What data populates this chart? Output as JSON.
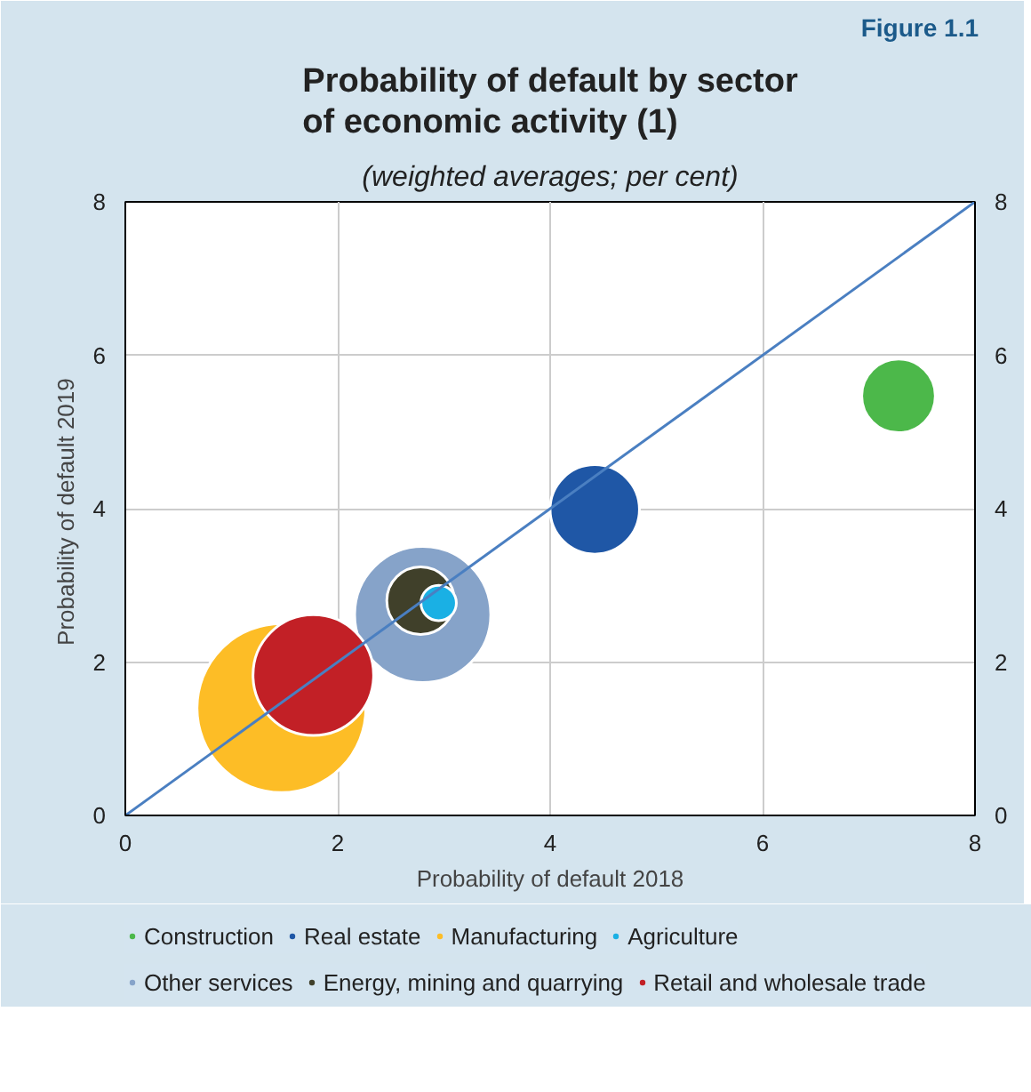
{
  "chart_data": {
    "type": "bubble",
    "title": "Probability of default by sector of economic activity (1)",
    "subtitle": "(weighted averages; per cent)",
    "annotations": [
      "Figure 1.1"
    ],
    "xlabel": "Probability of default 2018",
    "ylabel": "Probability of default  2019",
    "xlim": [
      0,
      8
    ],
    "xticks": [
      0,
      2,
      4,
      6,
      8
    ],
    "ylim": [
      0,
      8
    ],
    "yticks": [
      0,
      2,
      4,
      6,
      8
    ],
    "y2lim": [
      0,
      8
    ],
    "y2ticks": [
      0,
      2,
      4,
      6,
      8
    ],
    "grid": true,
    "legend": "bottom",
    "series": [
      {
        "name": "Construction",
        "color": "#4cb84a",
        "x": [
          7.28
        ],
        "values": [
          5.47
        ],
        "sizes": [
          0.19
        ]
      },
      {
        "name": "Real estate",
        "color": "#1f57a6",
        "x": [
          4.42
        ],
        "values": [
          3.99
        ],
        "sizes": [
          0.28
        ]
      },
      {
        "name": "Manufacturing",
        "color": "#fdbd26",
        "x": [
          1.47
        ],
        "values": [
          1.4
        ],
        "sizes": [
          1
        ]
      },
      {
        "name": "Agriculture",
        "color": "#1ab0e4",
        "x": [
          2.95
        ],
        "values": [
          2.77
        ],
        "sizes": [
          0.044
        ]
      },
      {
        "name": "Other services",
        "color": "#86a3c9",
        "x": [
          2.8
        ],
        "values": [
          2.62
        ],
        "sizes": [
          0.65
        ]
      },
      {
        "name": "Energy, mining and quarrying",
        "color": "#40402a",
        "x": [
          2.78
        ],
        "values": [
          2.8
        ],
        "sizes": [
          0.16
        ]
      },
      {
        "name": "Retail and wholesale trade",
        "color": "#c22026",
        "x": [
          1.77
        ],
        "values": [
          1.83
        ],
        "sizes": [
          0.51
        ]
      },
      {
        "type": "line",
        "color": "#4a7fc1",
        "x": [
          0,
          8
        ],
        "values": [
          0,
          8
        ]
      }
    ]
  }
}
